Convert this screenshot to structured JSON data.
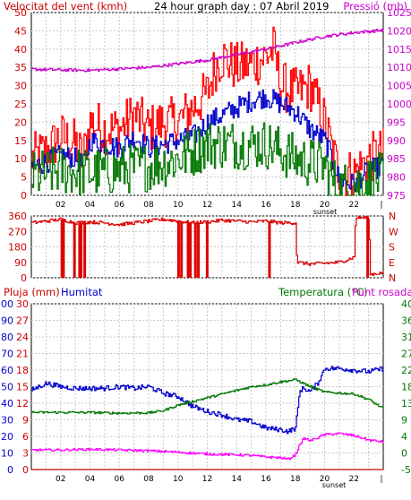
{
  "colors": {
    "background": "#ffffff",
    "frame": "#000000",
    "grid": "#c8c8c8",
    "wind_gust": "#ff0000",
    "wind_avg": "#0000cc",
    "wind_min": "#007700",
    "pressure": "#cc00cc",
    "direction": "#dd0000",
    "rain": "#cc0000",
    "humidity": "#0000cc",
    "temperature": "#007700",
    "dewpoint": "#ff00ff",
    "rain_axis": "#cc0000",
    "humidity_axis": "#0000cc",
    "temperature_axis": "#007700",
    "dewpoint_axis": "#cc00cc"
  },
  "chart_data": [
    {
      "id": "wind",
      "type": "line",
      "title": "24 hour graph day : 07 Abril 2019",
      "ylabel_left": "Velocitat del vent (kmh)",
      "ylabel_right": "Pressió (mb)",
      "x_tick_labels": [
        "02",
        "04",
        "06",
        "08",
        "10",
        "12",
        "14",
        "16",
        "18",
        "20",
        "22"
      ],
      "x_extra_labels": [
        "sunset"
      ],
      "x_range_hours": [
        0,
        24
      ],
      "grid": true,
      "ylim": [
        0,
        50
      ],
      "y_ticks": [
        "0",
        "5",
        "10",
        "15",
        "20",
        "25",
        "30",
        "35",
        "40",
        "45",
        "50"
      ],
      "ylim_right": [
        975,
        1025
      ],
      "y_ticks_right": [
        "975",
        "980",
        "985",
        "990",
        "995",
        "1000",
        "1005",
        "1010",
        "1015",
        "1020",
        "1025"
      ],
      "series": [
        {
          "key": "gust",
          "axis": "left",
          "color_key": "wind_gust",
          "noise": 7,
          "x": [
            0,
            1,
            2,
            3,
            3.5,
            4,
            5,
            6,
            7,
            8,
            9,
            10,
            11,
            12,
            12.5,
            13,
            13.5,
            14,
            15,
            16,
            16.5,
            17,
            18,
            19,
            20,
            20.5,
            21,
            22,
            23,
            24
          ],
          "y": [
            10,
            12,
            16,
            14,
            10,
            20,
            18,
            18,
            22,
            18,
            20,
            20,
            24,
            28,
            35,
            38,
            36,
            35,
            36,
            38,
            40,
            30,
            28,
            30,
            20,
            12,
            6,
            6,
            10,
            12
          ]
        },
        {
          "key": "average",
          "axis": "left",
          "color_key": "wind_avg",
          "noise": 3,
          "x": [
            0,
            1,
            2,
            3,
            3.5,
            4,
            5,
            6,
            7,
            8,
            9,
            10,
            11,
            12,
            13,
            14,
            15,
            16,
            17,
            18,
            19,
            20,
            20.5,
            21,
            22,
            23,
            24
          ],
          "y": [
            8,
            9,
            11,
            10,
            8,
            15,
            14,
            13,
            16,
            13,
            14,
            15,
            16,
            20,
            22,
            24,
            26,
            27,
            25,
            23,
            18,
            15,
            10,
            4,
            3,
            7,
            8
          ]
        },
        {
          "key": "minimum",
          "axis": "left",
          "color_key": "wind_min",
          "noise": 7,
          "x": [
            0,
            2,
            4,
            6,
            8,
            10,
            12,
            14,
            16,
            18,
            20,
            20.5,
            21,
            22,
            24
          ],
          "y": [
            5,
            7,
            6,
            7,
            8,
            10,
            14,
            14,
            14,
            10,
            8,
            4,
            2,
            3,
            5
          ],
          "floor": 0
        },
        {
          "key": "pressure",
          "axis": "right",
          "color_key": "pressure",
          "noise": 0.4,
          "x": [
            0,
            2,
            4,
            6,
            8,
            10,
            12,
            14,
            16,
            18,
            20,
            22,
            24
          ],
          "y": [
            1009.5,
            1009.3,
            1009.2,
            1009.6,
            1010.0,
            1011.0,
            1012.0,
            1013.5,
            1015.0,
            1016.8,
            1018.5,
            1019.5,
            1020.2
          ]
        }
      ]
    },
    {
      "id": "direction",
      "type": "line",
      "title": "",
      "ylim": [
        0,
        360
      ],
      "y_ticks": [
        "0",
        "90",
        "180",
        "270",
        "360"
      ],
      "y_ticks_right": [
        "N",
        "E",
        "S",
        "W",
        "N"
      ],
      "grid": true,
      "series": [
        {
          "key": "direction",
          "axis": "left",
          "color_key": "direction",
          "noise": 10,
          "x": [
            0,
            1,
            2,
            2.5,
            3,
            4,
            5,
            6,
            7,
            8,
            9,
            10,
            11,
            12,
            13,
            14,
            15,
            16,
            17,
            18,
            18.1,
            19,
            20,
            21,
            22,
            22.1,
            23,
            23.1,
            24
          ],
          "y": [
            320,
            330,
            340,
            330,
            320,
            325,
            320,
            310,
            320,
            330,
            340,
            330,
            320,
            325,
            335,
            330,
            325,
            330,
            320,
            320,
            90,
            80,
            85,
            90,
            120,
            350,
            350,
            20,
            30
          ]
        }
      ],
      "spikes_to_zero": [
        2.0,
        2.1,
        2.85,
        3.2,
        3.3,
        3.55,
        9.95,
        10.15,
        10.6,
        10.75,
        11.1,
        11.3,
        11.9,
        16.15,
        22.85
      ]
    },
    {
      "id": "climate",
      "type": "line",
      "title": "",
      "ylabel_rain": "Pluja (mm)",
      "ylabel_humidity": "Humitat",
      "ylabel_temperature": "Temperatura (°C)",
      "ylabel_dewpoint": "Punt rosada",
      "x_tick_labels": [
        "02",
        "04",
        "06",
        "08",
        "10",
        "12",
        "14",
        "16",
        "18",
        "20",
        "22"
      ],
      "x_extra_labels": [
        "sunset"
      ],
      "grid": true,
      "ylim_humidity": [
        0,
        100
      ],
      "y_ticks_humidity": [
        "0",
        "10",
        "20",
        "30",
        "40",
        "50",
        "60",
        "70",
        "80",
        "90",
        "100"
      ],
      "ylim_rain": [
        0,
        30
      ],
      "y_ticks_rain": [
        "0",
        "3",
        "6",
        "9",
        "12",
        "15",
        "18",
        "21",
        "24",
        "27",
        "30"
      ],
      "y_ticks_temperature": [
        "40",
        "36",
        "31",
        "27",
        "22",
        "18",
        "13",
        "9",
        "4",
        "0",
        "-5"
      ],
      "ylim_temperature": [
        -5,
        40
      ],
      "series": [
        {
          "key": "humidity",
          "axis": "humidity",
          "color_key": "humidity",
          "noise": 1.5,
          "x": [
            0,
            1,
            2,
            3,
            4,
            5,
            6,
            7,
            8,
            9,
            10,
            11,
            12,
            13,
            14,
            15,
            16,
            17,
            17.5,
            18,
            18.3,
            18.6,
            19,
            19.5,
            20,
            21,
            22,
            23,
            24
          ],
          "y": [
            48,
            52,
            50,
            49,
            49,
            49,
            50,
            49,
            50,
            46,
            44,
            38,
            35,
            33,
            30,
            29,
            25,
            24,
            23,
            25,
            48,
            49,
            47,
            52,
            61,
            61,
            60,
            59,
            61
          ]
        },
        {
          "key": "temperature",
          "axis": "temperature",
          "color_key": "temperature",
          "noise": 0.3,
          "x": [
            0,
            2,
            4,
            6,
            8,
            9,
            10,
            11,
            12,
            13,
            14,
            15,
            16,
            17,
            18,
            19,
            20,
            22,
            23,
            24
          ],
          "y": [
            10.5,
            10.5,
            10.5,
            10.3,
            10.4,
            11,
            12.5,
            13.5,
            14.5,
            15.5,
            16.5,
            17.5,
            18,
            18.8,
            19.4,
            17.5,
            16,
            15.5,
            14,
            11.5
          ]
        },
        {
          "key": "dewpoint",
          "axis": "temperature",
          "color_key": "dewpoint",
          "noise": 0.3,
          "x": [
            0,
            2,
            4,
            6,
            8,
            10,
            12,
            14,
            15,
            16,
            17,
            17.5,
            18,
            18.3,
            18.6,
            19,
            20,
            21,
            22,
            23,
            24
          ],
          "y": [
            0.3,
            0.3,
            0.5,
            0.3,
            0.1,
            -0.3,
            -0.8,
            -1,
            -1.2,
            -1.6,
            -1.8,
            -2.2,
            -1,
            2,
            3.5,
            2.8,
            4.5,
            4.8,
            4.2,
            3,
            2.5
          ]
        },
        {
          "key": "rain",
          "axis": "rain",
          "color_key": "rain",
          "noise": 0,
          "x": [
            0,
            24
          ],
          "y": [
            0,
            0
          ]
        }
      ]
    }
  ]
}
